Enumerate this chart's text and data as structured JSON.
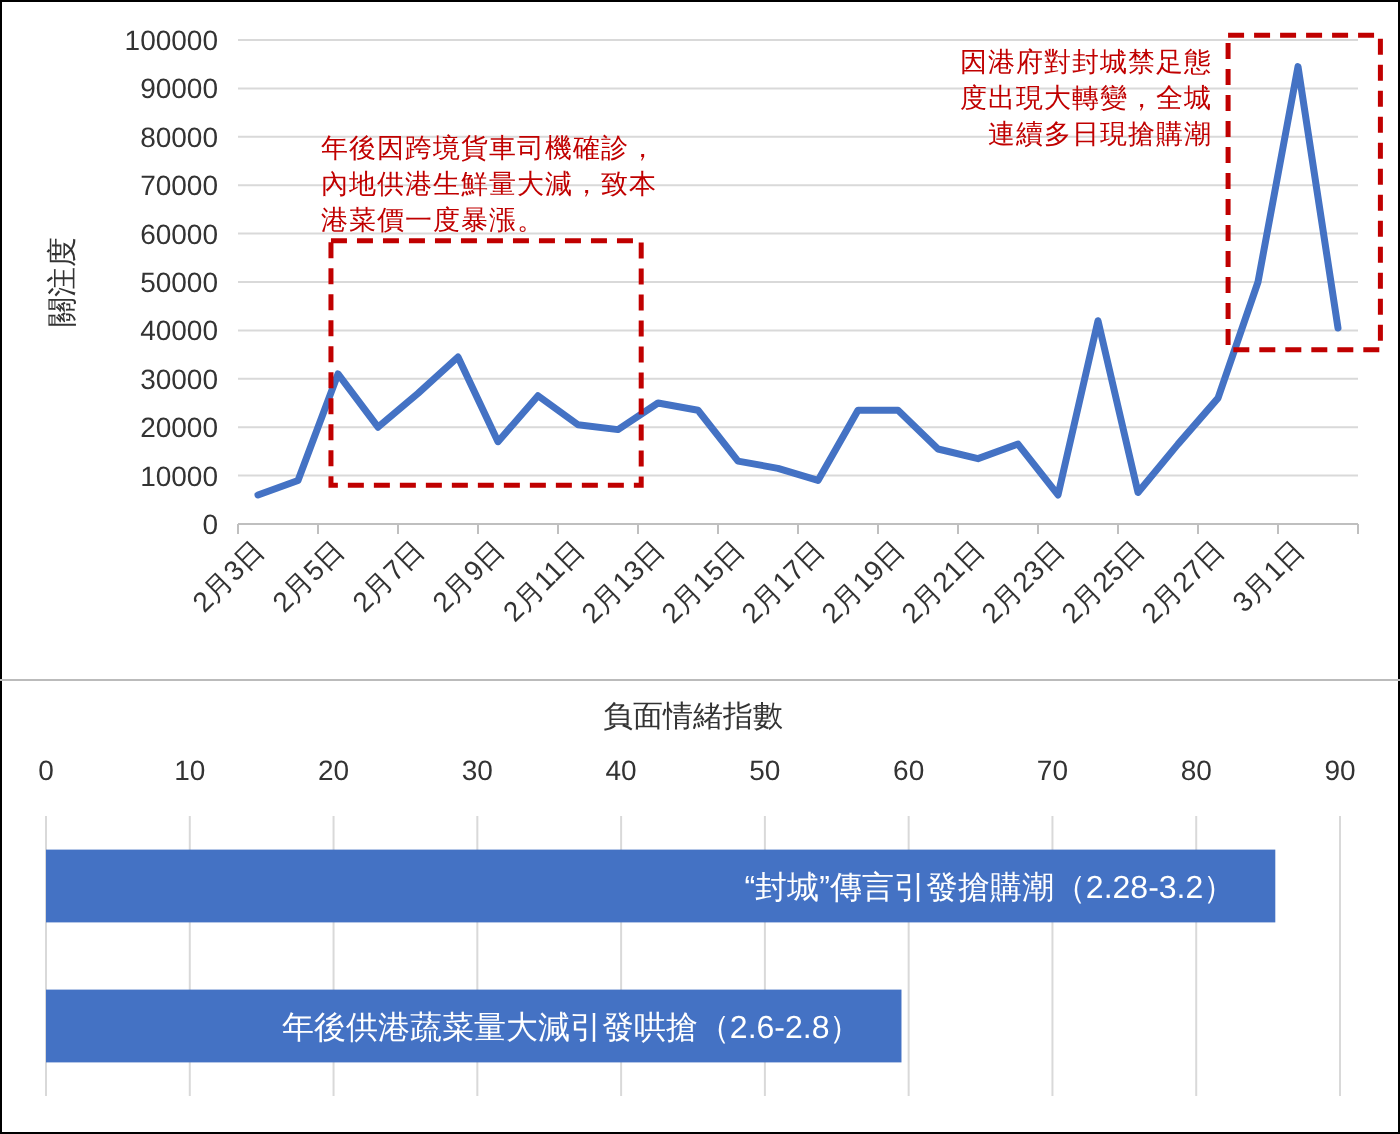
{
  "chart_data": [
    {
      "type": "line",
      "ylabel": "關注度",
      "categories": [
        "2月3日",
        null,
        "2月5日",
        null,
        "2月7日",
        null,
        "2月9日",
        null,
        "2月11日",
        null,
        "2月13日",
        null,
        "2月15日",
        null,
        "2月17日",
        null,
        "2月19日",
        null,
        "2月21日",
        null,
        "2月23日",
        null,
        "2月25日",
        null,
        "2月27日",
        null,
        "3月1日",
        null
      ],
      "series": [
        {
          "color": "#4472c4",
          "values": [
            6000,
            9000,
            31000,
            20000,
            27000,
            34500,
            17000,
            26500,
            20500,
            19500,
            25000,
            23500,
            13000,
            11500,
            9000,
            23500,
            23500,
            15500,
            13500,
            16500,
            6000,
            42000,
            6500,
            16500,
            26000,
            50000,
            94500,
            40500
          ]
        }
      ],
      "ylim": [
        0,
        100000
      ],
      "yticks": [
        0,
        10000,
        20000,
        30000,
        40000,
        50000,
        60000,
        70000,
        80000,
        90000,
        100000
      ],
      "grid": "y",
      "marker": "none",
      "line_style": "solid",
      "annotations": [
        "年後因跨境貨車司機確診，內地供港生鮮量大減，致本港菜價一度暴漲。",
        "因港府對封城禁足態度出現大轉變，全城連續多日現搶購潮"
      ]
    },
    {
      "type": "bar",
      "orientation": "horizontal",
      "xlabel": "負面情緒指數",
      "categories": [
        "“封城”傳言引發搶購潮（2.28-3.2）",
        "年後供港蔬菜量大減引發哄搶（2.6-2.8）"
      ],
      "values": [
        85.5,
        59.5
      ],
      "color": "#4472c4",
      "xlim": [
        0,
        90
      ],
      "xticks": [
        0,
        10,
        20,
        30,
        40,
        50,
        60,
        70,
        80,
        90
      ],
      "grid": "x"
    }
  ]
}
